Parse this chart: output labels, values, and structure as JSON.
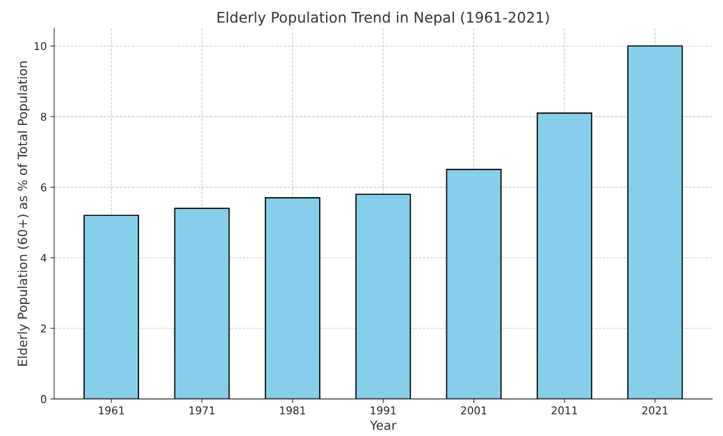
{
  "chart_data": {
    "type": "bar",
    "title": "Elderly Population Trend in Nepal (1961-2021)",
    "xlabel": "Year",
    "ylabel": "Elderly Population (60+) as % of Total Population",
    "categories": [
      "1961",
      "1971",
      "1981",
      "1991",
      "2001",
      "2011",
      "2021"
    ],
    "values": [
      5.2,
      5.4,
      5.7,
      5.8,
      6.5,
      8.1,
      10.0
    ],
    "color": "#87ceeb",
    "ylim": [
      0,
      10.5
    ],
    "yticks": [
      0,
      2,
      4,
      6,
      8,
      10
    ],
    "grid": true,
    "line_style": "dashed"
  }
}
